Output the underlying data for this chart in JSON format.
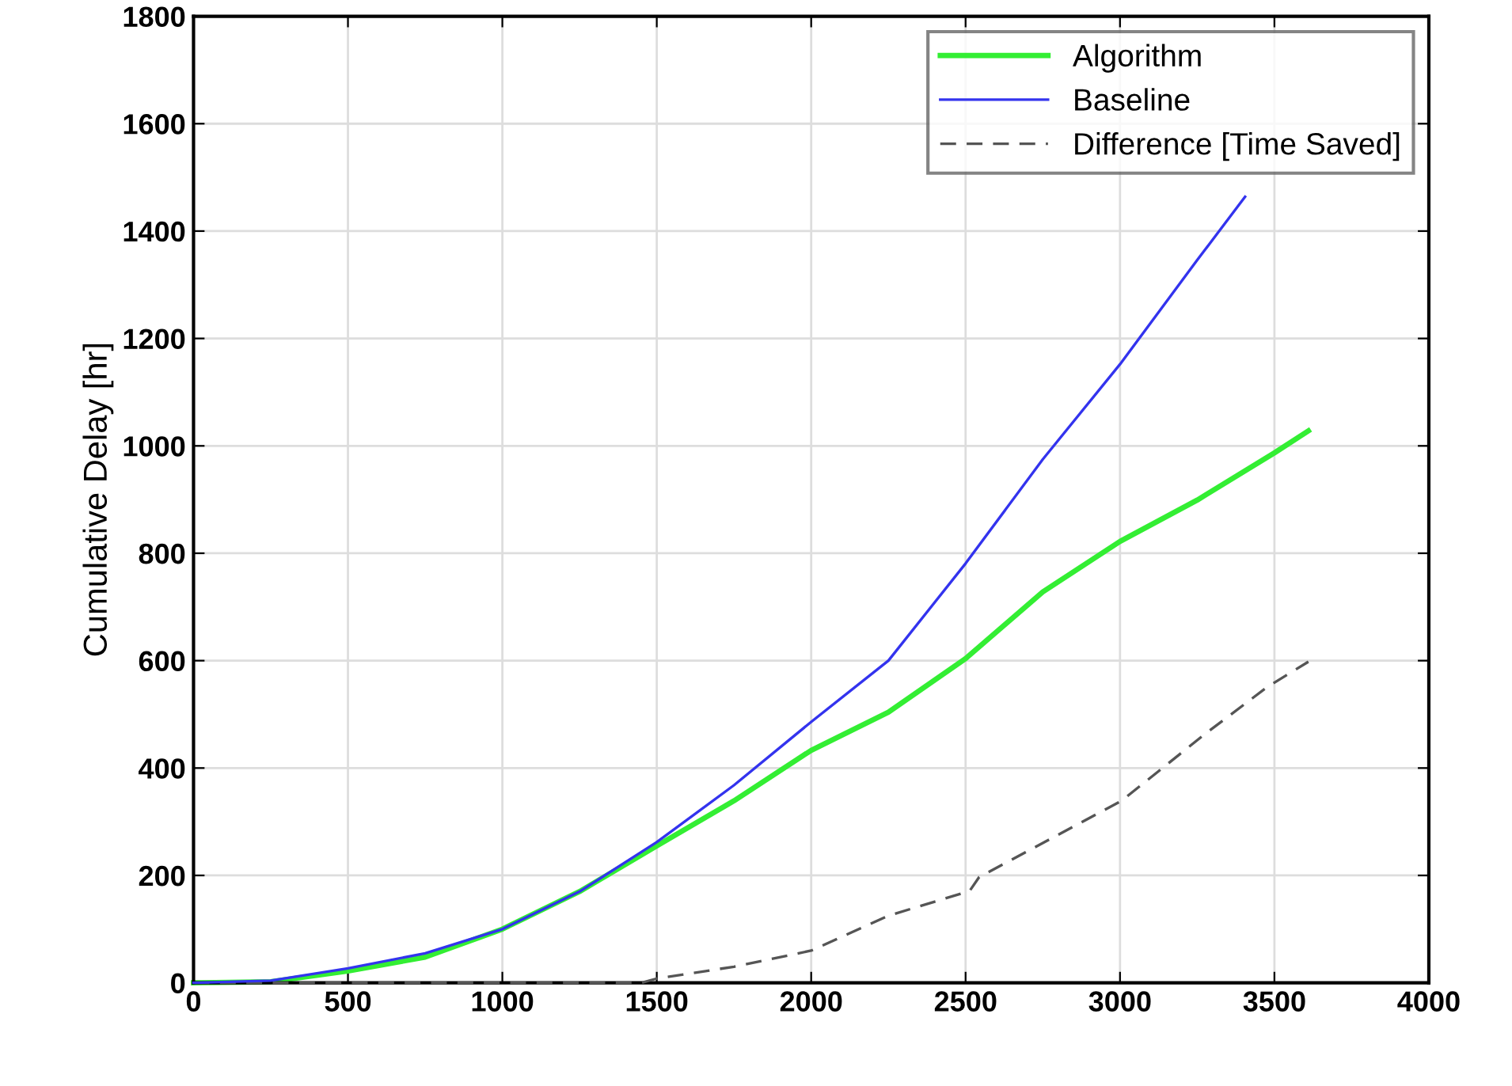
{
  "chart_data": {
    "type": "line",
    "ylabel": "Cumulative Delay [hr]",
    "xlim": [
      0,
      4000
    ],
    "xticks": [
      0,
      500,
      1000,
      1500,
      2000,
      2500,
      3000,
      3500,
      4000
    ],
    "ylim": [
      0,
      1800
    ],
    "yticks": [
      0,
      200,
      400,
      600,
      800,
      1000,
      1200,
      1400,
      1600,
      1800
    ],
    "grid": true,
    "legend": "top right",
    "series": [
      {
        "name": "Algorithm",
        "color": "#33ee33",
        "line_style": "solid",
        "x": [
          0,
          250,
          500,
          750,
          1000,
          1250,
          1500,
          1750,
          2000,
          2250,
          2500,
          2750,
          3000,
          3250,
          3500,
          3610
        ],
        "values": [
          0,
          2,
          22,
          48,
          100,
          170,
          255,
          339,
          433,
          504,
          604,
          728,
          822,
          899,
          987,
          1028
        ]
      },
      {
        "name": "Baseline",
        "color": "#3333ee",
        "line_style": "solid",
        "x": [
          0,
          250,
          500,
          750,
          1000,
          1250,
          1500,
          1750,
          2000,
          2250,
          2500,
          2750,
          3000,
          3250,
          3405
        ],
        "values": [
          0,
          4,
          27,
          55,
          100,
          170,
          262,
          368,
          486,
          600,
          781,
          975,
          1152,
          1346,
          1464
        ]
      },
      {
        "name": "Difference [Time Saved]",
        "color": "#555555",
        "line_style": "dashed",
        "x": [
          0,
          1000,
          1450,
          1500,
          1750,
          2000,
          2250,
          2513,
          2544,
          3005,
          3272,
          3477,
          3610
        ],
        "values": [
          0,
          0,
          0,
          8,
          30,
          60,
          125,
          171,
          197,
          339,
          462,
          551,
          598
        ]
      }
    ]
  }
}
